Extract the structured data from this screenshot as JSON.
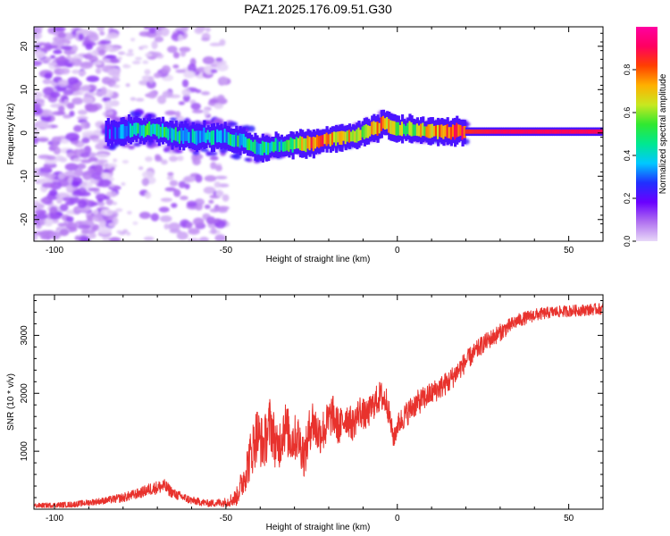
{
  "title": "PAZ1.2025.176.09.51.G30",
  "colors": {
    "snr_line": "#e8322d",
    "colorbar_stops": [
      "#e8d8f8",
      "#b070f0",
      "#6a00ff",
      "#2030ff",
      "#00c8ff",
      "#00e890",
      "#30e830",
      "#c8e820",
      "#ffb000",
      "#ff4000",
      "#ff0060",
      "#ff00a0"
    ]
  },
  "chart_data": [
    {
      "type": "heatmap",
      "xlabel": "Height of straight line (km)",
      "ylabel": "Frequency (Hz)",
      "xlim": [
        -106,
        60
      ],
      "ylim": [
        -25,
        24.5
      ],
      "xticks": [
        -100,
        -50,
        0,
        50
      ],
      "yticks": [
        -20,
        -10,
        0,
        10,
        20
      ],
      "colorbar": {
        "label": "Normalized spectral amplitude",
        "range": [
          0,
          1
        ],
        "ticks": [
          "0.0",
          "0.2",
          "0.4",
          "0.6",
          "0.8"
        ]
      },
      "ridge": {
        "x": [
          -85,
          -80,
          -75,
          -70,
          -65,
          -60,
          -55,
          -50,
          -45,
          -40,
          -35,
          -30,
          -25,
          -20,
          -15,
          -10,
          -5,
          -4,
          -2,
          0,
          5,
          10,
          15,
          20,
          30,
          40,
          50,
          60
        ],
        "y": [
          0,
          0.5,
          0.8,
          0.5,
          -0.5,
          -0.8,
          -0.8,
          -1,
          -2,
          -3.5,
          -3,
          -2.5,
          -2.5,
          -1.5,
          -1,
          0,
          1.5,
          2.3,
          1.5,
          1,
          0.6,
          0.4,
          0.3,
          0.3,
          0.3,
          0.3,
          0.3,
          0.3
        ],
        "amplitude": [
          0.25,
          0.35,
          0.45,
          0.45,
          0.4,
          0.35,
          0.35,
          0.4,
          0.45,
          0.4,
          0.4,
          0.5,
          0.8,
          0.75,
          0.7,
          0.65,
          0.7,
          0.8,
          0.6,
          0.55,
          0.6,
          0.7,
          0.75,
          0.85,
          0.9,
          0.9,
          0.9,
          0.9
        ]
      }
    },
    {
      "type": "line",
      "xlabel": "Height of straight line (km)",
      "ylabel": "SNR (10 * v/v)",
      "xlim": [
        -106,
        60
      ],
      "ylim": [
        0,
        3700
      ],
      "xticks": [
        -100,
        -50,
        0,
        50
      ],
      "yticks": [
        1000,
        2000,
        3000
      ],
      "series": [
        {
          "x": [
            -106,
            -95,
            -85,
            -80,
            -75,
            -72,
            -68,
            -65,
            -60,
            -55,
            -50,
            -47,
            -45,
            -43,
            -41,
            -39,
            -37,
            -35,
            -33,
            -31,
            -29,
            -27,
            -25,
            -23,
            -21,
            -19,
            -17,
            -15,
            -13,
            -11,
            -9,
            -7,
            -5,
            -3,
            -2,
            -1,
            0,
            2,
            5,
            10,
            15,
            20,
            25,
            30,
            35,
            40,
            45,
            50,
            55,
            60
          ],
          "values": [
            60,
            80,
            150,
            200,
            280,
            350,
            400,
            260,
            150,
            100,
            120,
            200,
            500,
            900,
            1300,
            1100,
            1500,
            1000,
            1450,
            1200,
            1250,
            900,
            1550,
            1300,
            1400,
            1650,
            1400,
            1600,
            1450,
            1700,
            1600,
            1800,
            1950,
            1850,
            1500,
            1200,
            1450,
            1600,
            1800,
            2000,
            2200,
            2550,
            2850,
            3050,
            3250,
            3350,
            3400,
            3420,
            3440,
            3460
          ],
          "noise": [
            40,
            50,
            60,
            80,
            90,
            110,
            120,
            90,
            70,
            60,
            80,
            150,
            280,
            420,
            500,
            450,
            500,
            420,
            480,
            420,
            400,
            380,
            420,
            380,
            380,
            350,
            320,
            300,
            280,
            280,
            260,
            260,
            280,
            260,
            200,
            180,
            200,
            220,
            220,
            200,
            200,
            180,
            160,
            150,
            120,
            110,
            100,
            100,
            100,
            100
          ],
          "color": "#e8322d"
        }
      ]
    }
  ]
}
